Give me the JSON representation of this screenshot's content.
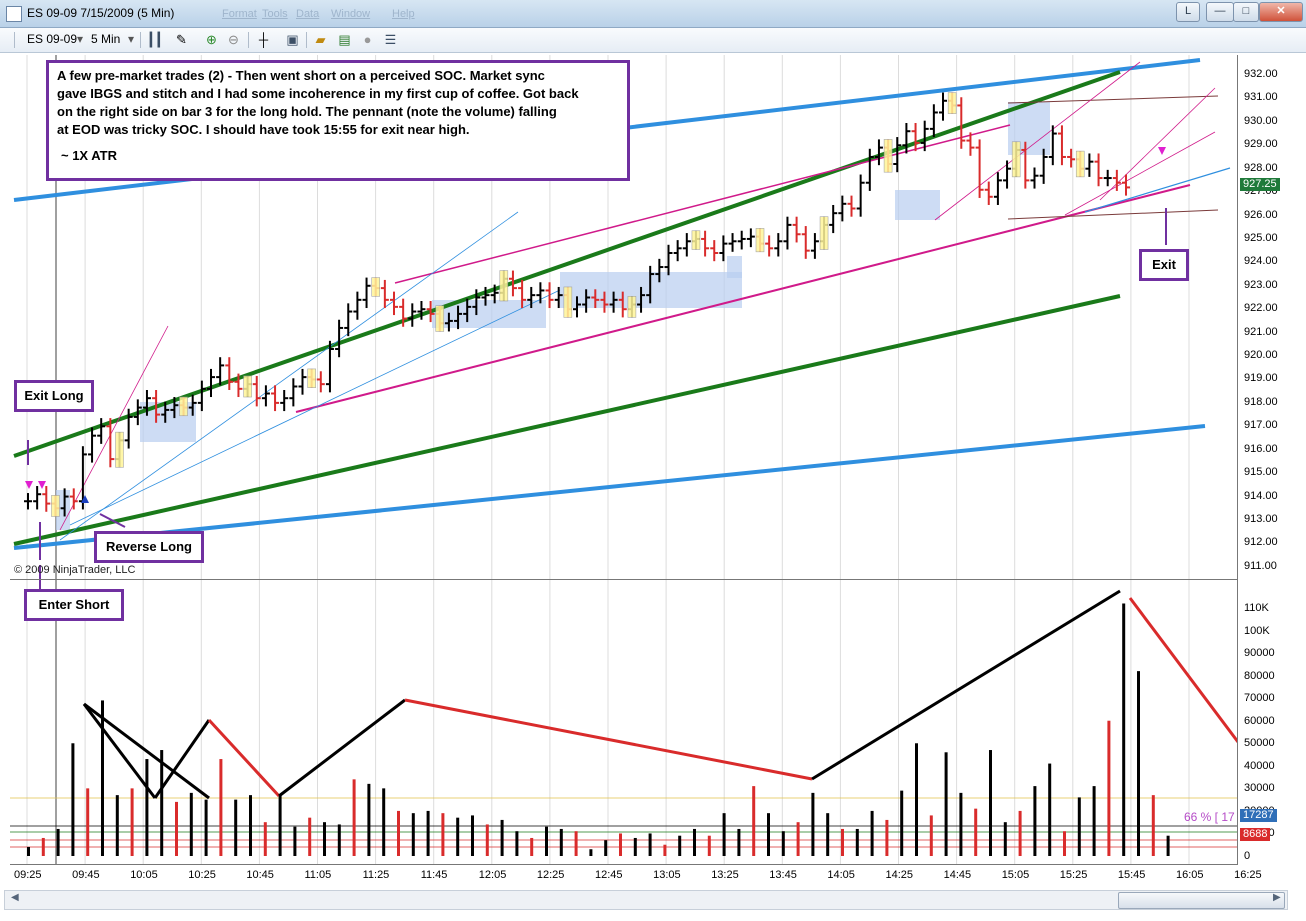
{
  "window": {
    "title": "ES 09-09  7/15/2009 (5 Min)",
    "menus": [
      "Format",
      "Tools",
      "Data",
      "Window",
      "Help"
    ],
    "controls": {
      "minimize": "L",
      "restore": "□",
      "maximize": "□",
      "close": "✕"
    }
  },
  "toolbar": {
    "instrument": "ES 09-09",
    "interval": "5 Min",
    "dropdown_arrow": "▾",
    "icons": [
      "bar-type-icon",
      "drawing-tool-icon",
      "zoom-in-icon",
      "zoom-out-icon",
      "crosshair-icon",
      "data-box-icon",
      "open-folder-icon",
      "chart-properties-icon",
      "sync-icon",
      "list-icon"
    ]
  },
  "annotations": {
    "main_note_lines": [
      "A few pre-market trades (2) - Then went short on a perceived SOC.  Market sync",
      "gave IBGS and stitch and I had some incoherence in my first cup of coffee.  Got back",
      "on the right side on bar 3 for the long hold.  The pennant (note the volume) falling",
      "at EOD was tricky SOC. I should have took 15:55 for exit near high."
    ],
    "atr_note": "~ 1X ATR",
    "exit_long": "Exit Long",
    "reverse_long": "Reverse Long",
    "enter_short": "Enter Short",
    "exit": "Exit"
  },
  "copyright": "© 2009 NinjaTrader, LLC",
  "price_axis": {
    "labels": [
      "932.00",
      "931.00",
      "930.00",
      "929.00",
      "928.00",
      "927.00",
      "926.00",
      "925.00",
      "924.00",
      "923.00",
      "922.00",
      "921.00",
      "920.00",
      "919.00",
      "918.00",
      "917.00",
      "916.00",
      "915.00",
      "914.00",
      "913.00",
      "912.00",
      "911.00"
    ],
    "current_price": "927.25",
    "current_price_color": "#1f7a3a"
  },
  "volume_axis": {
    "labels": [
      "110K",
      "100K",
      "90000",
      "80000",
      "70000",
      "60000",
      "50000",
      "40000",
      "30000",
      "20000",
      "10000",
      "0"
    ],
    "last_volume": "8688",
    "last_volume_color": "#d92b2b",
    "avg_volume": "17287",
    "avg_volume_color": "#2f6fb8",
    "pct_text": "66 % [ 17"
  },
  "time_axis": {
    "labels": [
      "09:25",
      "09:45",
      "10:05",
      "10:25",
      "10:45",
      "11:05",
      "11:25",
      "11:45",
      "12:05",
      "12:25",
      "12:45",
      "13:05",
      "13:25",
      "13:45",
      "14:05",
      "14:25",
      "14:45",
      "15:05",
      "15:25",
      "15:45",
      "16:05",
      "16:25"
    ]
  },
  "colors": {
    "up_bar": "#000000",
    "down_bar": "#d92b2b",
    "channel_green": "#1a7a1a",
    "channel_blue": "#2f8fdf",
    "trendline_magenta": "#d01a8a",
    "annotation_border": "#7030a0",
    "highlight_yellow": "#fff59a",
    "highlight_blue": "#b8cdf0"
  }
}
